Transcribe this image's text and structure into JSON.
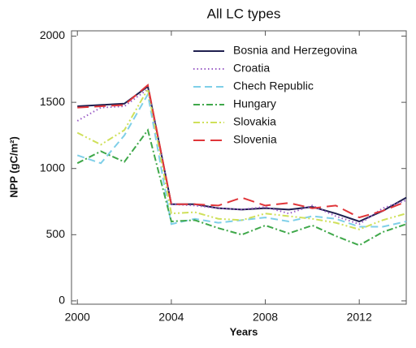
{
  "chart_data": {
    "type": "line",
    "title": "All LC types",
    "x_label": "Years",
    "y_label": "NPP (gC/m²)",
    "x": [
      2000,
      2001,
      2002,
      2003,
      2004,
      2005,
      2006,
      2007,
      2008,
      2009,
      2010,
      2011,
      2012,
      2013,
      2014
    ],
    "xlim": [
      1999.75,
      2014
    ],
    "xticks": [
      2000,
      2004,
      2008,
      2012
    ],
    "ylim": [
      -25,
      2040
    ],
    "yticks": [
      0,
      500,
      1000,
      1500,
      2000
    ],
    "legend": "upper right",
    "series": [
      {
        "name": "Bosnia and Herzegovina",
        "color": "#1f1f4f",
        "linestyle": "solid",
        "values": [
          1470,
          1480,
          1490,
          1620,
          730,
          730,
          700,
          690,
          700,
          690,
          710,
          660,
          600,
          680,
          780
        ]
      },
      {
        "name": "Croatia",
        "color": "#9a5cc6",
        "linestyle": "dotted",
        "values": [
          1360,
          1460,
          1470,
          1600,
          730,
          720,
          700,
          690,
          710,
          660,
          720,
          640,
          580,
          700,
          760
        ]
      },
      {
        "name": "Chech Republic",
        "color": "#7fcfe8",
        "linestyle": "dashed",
        "values": [
          1100,
          1040,
          1250,
          1560,
          580,
          620,
          590,
          610,
          630,
          600,
          640,
          620,
          560,
          560,
          600
        ]
      },
      {
        "name": "Hungary",
        "color": "#3fa84a",
        "linestyle": "dashdot",
        "values": [
          1040,
          1130,
          1050,
          1290,
          600,
          610,
          550,
          500,
          570,
          510,
          570,
          490,
          420,
          520,
          580
        ]
      },
      {
        "name": "Slovakia",
        "color": "#cfe05a",
        "linestyle": "dashdotdot",
        "values": [
          1270,
          1180,
          1290,
          1600,
          660,
          670,
          620,
          610,
          660,
          640,
          620,
          590,
          540,
          610,
          660
        ]
      },
      {
        "name": "Slovenia",
        "color": "#e0363a",
        "linestyle": "longdash",
        "values": [
          1460,
          1470,
          1480,
          1630,
          730,
          730,
          720,
          780,
          720,
          740,
          700,
          720,
          630,
          680,
          750
        ]
      }
    ]
  }
}
